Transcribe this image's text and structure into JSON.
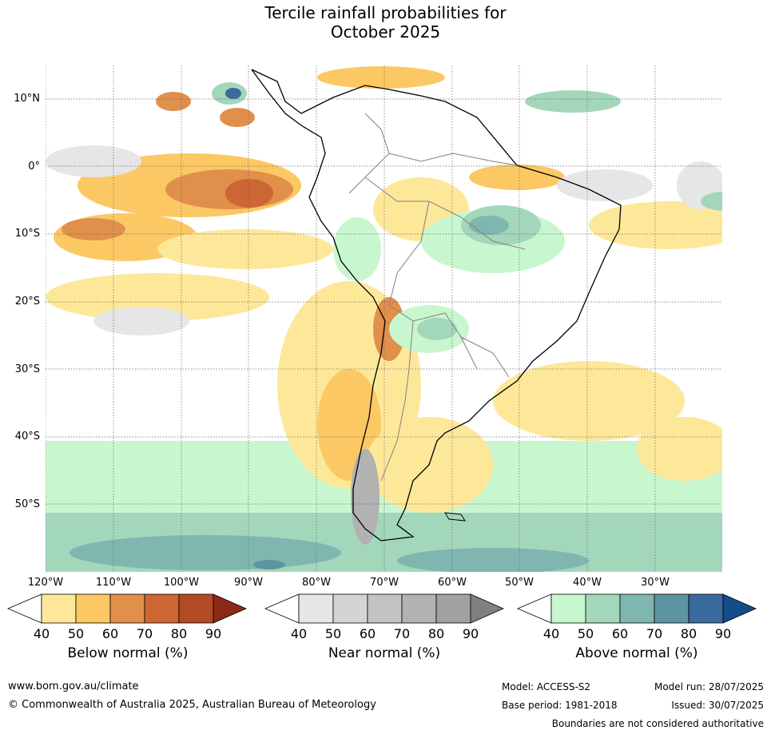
{
  "title_line1": "Tercile rainfall probabilities for",
  "title_line2": "October 2025",
  "latitude_labels": [
    "10°N",
    "0°",
    "10°S",
    "20°S",
    "30°S",
    "40°S",
    "50°S"
  ],
  "longitude_labels": [
    "120°W",
    "110°W",
    "100°W",
    "90°W",
    "80°W",
    "70°W",
    "60°W",
    "50°W",
    "40°W",
    "30°W"
  ],
  "colorbars": [
    {
      "title": "Below normal (%)",
      "ticks": [
        "40",
        "50",
        "60",
        "70",
        "80",
        "90"
      ],
      "colors": [
        "#ffffff",
        "#fde89a",
        "#fcc863",
        "#e0904a",
        "#cc6632",
        "#b34a25",
        "#8c2a17"
      ]
    },
    {
      "title": "Near normal (%)",
      "ticks": [
        "40",
        "50",
        "60",
        "70",
        "80",
        "90"
      ],
      "colors": [
        "#ffffff",
        "#e6e6e6",
        "#d4d4d4",
        "#c3c3c3",
        "#b2b2b2",
        "#a1a1a1",
        "#808080"
      ]
    },
    {
      "title": "Above normal (%)",
      "ticks": [
        "40",
        "50",
        "60",
        "70",
        "80",
        "90"
      ],
      "colors": [
        "#ffffff",
        "#c8f7cf",
        "#a3d7bb",
        "#80b6b0",
        "#5e93a2",
        "#3a6a9e",
        "#144d88"
      ]
    }
  ],
  "footer": {
    "url": "www.bom.gov.au/climate",
    "copyright": "© Commonwealth of Australia 2025, Australian Bureau of Meteorology",
    "model": "Model: ACCESS-S2",
    "base_period": "Base period: 1981-2018",
    "model_run": "Model run: 28/07/2025",
    "issued": "Issued: 30/07/2025",
    "boundaries": "Boundaries are not considered authoritative"
  }
}
